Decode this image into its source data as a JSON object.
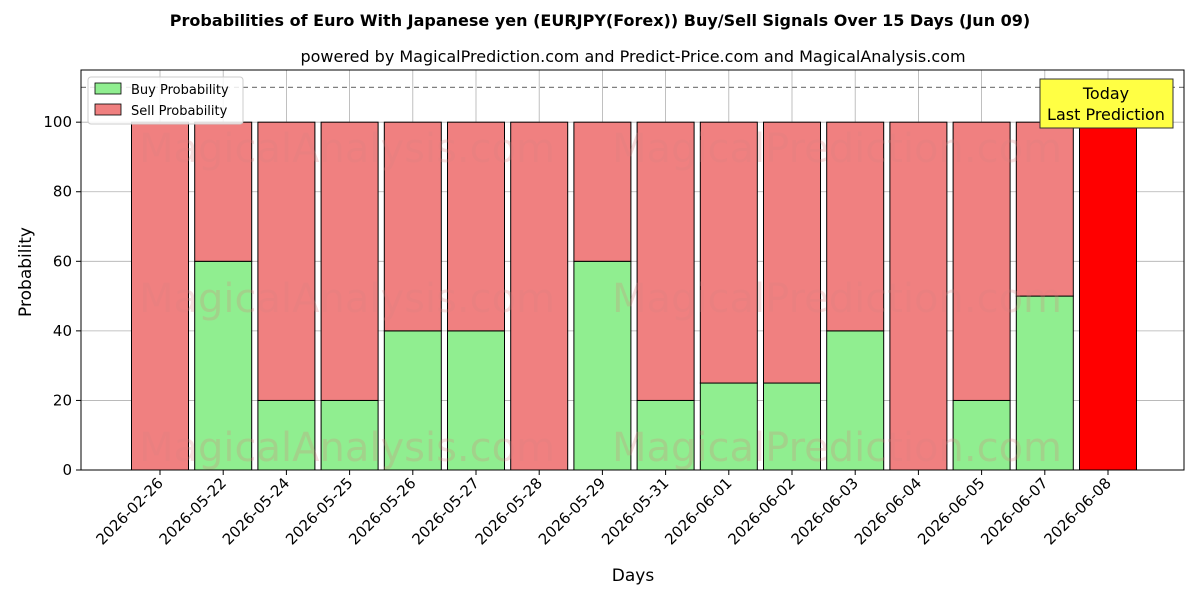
{
  "chart_data": {
    "type": "bar",
    "stacked": true,
    "title": "Probabilities of Euro With Japanese yen (EURJPY(Forex)) Buy/Sell Signals Over 15 Days (Jun 09)",
    "subtitle": "powered by MagicalPrediction.com and Predict-Price.com and MagicalAnalysis.com",
    "xlabel": "Days",
    "ylabel": "Probability",
    "ylim": [
      0,
      115
    ],
    "yticks": [
      0,
      20,
      40,
      60,
      80,
      100
    ],
    "grid": true,
    "legend_position": "top-left",
    "reference_line": 110,
    "categories": [
      "2026-02-26",
      "2026-05-22",
      "2026-05-24",
      "2026-05-25",
      "2026-05-26",
      "2026-05-27",
      "2026-05-28",
      "2026-05-29",
      "2026-05-31",
      "2026-06-01",
      "2026-06-02",
      "2026-06-03",
      "2026-06-04",
      "2026-06-05",
      "2026-06-07",
      "2026-06-08"
    ],
    "series": [
      {
        "name": "Buy Probability",
        "color": "#90ee90",
        "values": [
          0,
          60,
          20,
          20,
          40,
          40,
          0,
          60,
          20,
          25,
          25,
          40,
          0,
          20,
          50,
          0
        ]
      },
      {
        "name": "Sell Probability",
        "color": "#f08080",
        "values": [
          100,
          40,
          80,
          80,
          60,
          60,
          100,
          40,
          80,
          75,
          75,
          60,
          100,
          80,
          50,
          100
        ]
      }
    ],
    "highlight": {
      "index": 15,
      "color": "#ff0000"
    },
    "annotation": {
      "line1": "Today",
      "line2": "Last Prediction",
      "color": "#ffff44"
    },
    "watermarks": [
      "MagicalAnalysis.com",
      "MagicalPrediction.com"
    ]
  }
}
